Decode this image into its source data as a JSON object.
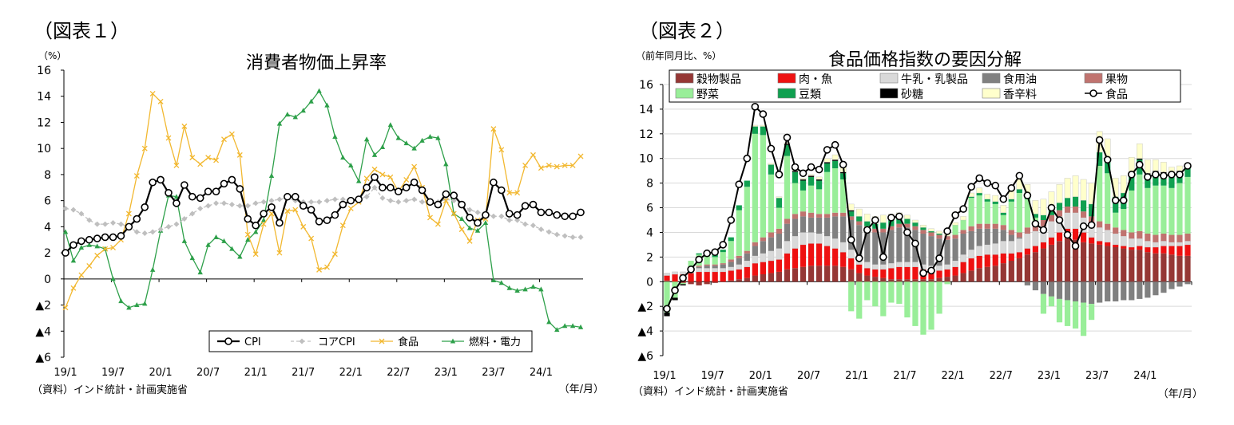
{
  "chart_data": [
    {
      "type": "line",
      "figure_label": "（図表１）",
      "title": "消費者物価上昇率",
      "ylabel": "（%）",
      "unit_label": "（年/月）",
      "source": "（資料）インド統計・計画実施省",
      "ylim": [
        -6,
        16
      ],
      "yticks": [
        16,
        14,
        12,
        10,
        8,
        6,
        4,
        2,
        0,
        "▲2",
        "▲4",
        "▲6"
      ],
      "xtick_labels": [
        "19/1",
        "19/7",
        "20/1",
        "20/7",
        "21/1",
        "21/7",
        "22/1",
        "22/7",
        "23/1",
        "23/7",
        "24/1"
      ],
      "legend": [
        "CPI",
        "コアCPI",
        "食品",
        "燃料・電力"
      ],
      "legend_position": "bottom-right",
      "series": [
        {
          "name": "CPI",
          "color": "#000000",
          "marker": "open-circle",
          "values": [
            2.0,
            2.6,
            2.9,
            3.0,
            3.1,
            3.2,
            3.2,
            3.3,
            4.0,
            4.6,
            5.5,
            7.4,
            7.6,
            6.6,
            5.8,
            7.2,
            6.3,
            6.2,
            6.7,
            6.7,
            7.3,
            7.6,
            6.9,
            4.6,
            4.1,
            5.0,
            5.5,
            4.3,
            6.3,
            6.3,
            5.6,
            5.3,
            4.4,
            4.5,
            4.9,
            5.7,
            6.0,
            6.1,
            7.0,
            7.8,
            7.0,
            7.0,
            6.7,
            7.0,
            7.4,
            6.8,
            5.9,
            5.7,
            6.5,
            6.4,
            5.7,
            4.7,
            4.3,
            4.9,
            7.4,
            6.8,
            5.0,
            4.9,
            5.6,
            5.7,
            5.1,
            5.1,
            4.9,
            4.8,
            4.8,
            5.1
          ]
        },
        {
          "name": "コアCPI",
          "color": "#bfbfbf",
          "marker": "diamond",
          "values": [
            5.4,
            5.3,
            5.0,
            4.5,
            4.2,
            4.2,
            4.3,
            4.2,
            4.0,
            3.6,
            3.5,
            3.6,
            3.8,
            4.0,
            4.2,
            4.6,
            5.0,
            5.4,
            5.6,
            5.8,
            5.8,
            5.7,
            5.6,
            5.6,
            5.8,
            5.9,
            6.0,
            6.1,
            6.2,
            6.0,
            5.9,
            5.9,
            5.9,
            6.0,
            6.1,
            6.1,
            6.0,
            6.1,
            6.3,
            7.0,
            6.2,
            6.0,
            5.9,
            6.0,
            6.1,
            5.9,
            5.9,
            5.9,
            6.1,
            6.0,
            5.7,
            5.3,
            5.1,
            5.0,
            4.8,
            4.8,
            4.5,
            4.5,
            4.2,
            4.1,
            3.8,
            3.6,
            3.4,
            3.3,
            3.2,
            3.2
          ]
        },
        {
          "name": "食品",
          "color": "#f2b830",
          "marker": "x",
          "values": [
            -2.2,
            -0.7,
            0.3,
            1.0,
            1.8,
            2.3,
            2.4,
            3.0,
            5.0,
            7.9,
            10.0,
            14.2,
            13.6,
            10.8,
            8.7,
            11.7,
            9.3,
            8.8,
            9.3,
            9.1,
            10.7,
            11.1,
            9.5,
            3.4,
            1.9,
            4.2,
            5.0,
            2.0,
            5.2,
            5.3,
            4.0,
            3.1,
            0.7,
            0.9,
            1.9,
            4.1,
            5.4,
            5.9,
            7.7,
            8.4,
            8.0,
            7.8,
            6.7,
            7.6,
            8.6,
            7.0,
            4.7,
            4.2,
            6.0,
            5.0,
            3.8,
            2.9,
            4.5,
            4.6,
            11.5,
            9.9,
            6.6,
            6.6,
            8.7,
            9.5,
            8.5,
            8.7,
            8.6,
            8.7,
            8.7,
            9.4
          ]
        },
        {
          "name": "燃料・電力",
          "color": "#2ea04a",
          "marker": "triangle",
          "values": [
            3.6,
            1.4,
            2.4,
            2.6,
            2.5,
            2.3,
            0.0,
            -1.7,
            -2.2,
            -2.0,
            -1.9,
            0.7,
            3.7,
            6.4,
            6.3,
            2.9,
            1.6,
            0.5,
            2.6,
            3.2,
            2.9,
            2.3,
            1.7,
            3.0,
            3.6,
            4.5,
            7.9,
            11.9,
            12.6,
            12.4,
            12.9,
            13.6,
            14.4,
            13.3,
            10.9,
            9.3,
            8.7,
            7.5,
            10.7,
            9.5,
            10.1,
            11.8,
            10.8,
            10.4,
            10.0,
            10.6,
            10.9,
            10.8,
            8.8,
            5.0,
            4.6,
            3.9,
            3.7,
            4.3,
            -0.1,
            -0.3,
            -0.7,
            -0.9,
            -0.8,
            -0.6,
            -0.8,
            -3.3,
            -3.9,
            -3.6,
            -3.6,
            -3.7
          ]
        }
      ]
    },
    {
      "type": "bar",
      "stacked": true,
      "figure_label": "（図表２）",
      "title": "食品価格指数の要因分解",
      "ylabel": "（前年同月比、%）",
      "unit_label": "（年/月）",
      "source": "（資料）インド統計・計画実施省",
      "ylim": [
        -6,
        16
      ],
      "yticks": [
        16,
        14,
        12,
        10,
        8,
        6,
        4,
        2,
        0,
        "▲2",
        "▲4",
        "▲6"
      ],
      "xtick_labels": [
        "19/1",
        "19/7",
        "20/1",
        "20/7",
        "21/1",
        "21/7",
        "22/1",
        "22/7",
        "23/1",
        "23/7",
        "24/1"
      ],
      "legend": [
        "穀物製品",
        "肉・魚",
        "牛乳・乳製品",
        "食用油",
        "果物",
        "野菜",
        "豆類",
        "砂糖",
        "香辛料",
        "食品"
      ],
      "legend_position": "top",
      "series": [
        {
          "name": "穀物製品",
          "color": "#953735",
          "values": [
            0.1,
            0.0,
            -0.1,
            -0.2,
            -0.3,
            -0.2,
            -0.1,
            0.0,
            0.1,
            0.2,
            0.3,
            0.5,
            0.6,
            0.7,
            0.8,
            1.0,
            1.1,
            1.2,
            1.3,
            1.3,
            1.3,
            1.3,
            1.2,
            1.0,
            0.7,
            0.5,
            0.4,
            0.3,
            0.2,
            0.2,
            0.2,
            0.2,
            0.2,
            0.2,
            0.3,
            0.4,
            0.5,
            0.7,
            0.9,
            1.1,
            1.2,
            1.3,
            1.5,
            1.7,
            1.9,
            2.2,
            2.4,
            2.7,
            3.0,
            3.3,
            3.5,
            3.4,
            3.2,
            3.1,
            3.0,
            2.9,
            2.8,
            2.7,
            2.6,
            2.6,
            2.4,
            2.3,
            2.3,
            2.2,
            2.1,
            2.1
          ]
        },
        {
          "name": "肉・魚",
          "color": "#ee1111",
          "values": [
            0.4,
            0.6,
            0.6,
            0.7,
            0.8,
            0.8,
            0.8,
            0.8,
            0.8,
            0.8,
            0.9,
            1.0,
            1.0,
            1.0,
            1.0,
            1.3,
            1.6,
            1.8,
            1.8,
            1.8,
            1.6,
            1.4,
            1.2,
            0.9,
            0.7,
            0.6,
            0.6,
            0.7,
            0.9,
            1.0,
            1.0,
            1.0,
            0.8,
            0.7,
            0.6,
            0.6,
            0.7,
            0.9,
            1.0,
            1.0,
            1.0,
            0.9,
            0.8,
            0.6,
            0.5,
            0.5,
            0.5,
            0.5,
            0.6,
            0.7,
            0.8,
            0.9,
            0.8,
            0.5,
            0.3,
            0.3,
            0.2,
            0.2,
            0.2,
            0.3,
            0.4,
            0.5,
            0.6,
            0.7,
            0.8,
            0.9
          ]
        },
        {
          "name": "牛乳・乳製品",
          "color": "#d9d9d9",
          "values": [
            0.2,
            0.2,
            0.2,
            0.2,
            0.3,
            0.3,
            0.3,
            0.3,
            0.3,
            0.4,
            0.5,
            0.6,
            0.7,
            0.8,
            0.9,
            1.0,
            1.0,
            1.0,
            0.9,
            0.8,
            0.8,
            0.8,
            0.8,
            0.7,
            0.6,
            0.5,
            0.4,
            0.4,
            0.4,
            0.4,
            0.4,
            0.4,
            0.4,
            0.4,
            0.4,
            0.4,
            0.5,
            0.6,
            0.7,
            0.8,
            0.8,
            0.9,
            1.0,
            1.0,
            1.1,
            1.2,
            1.2,
            1.3,
            1.3,
            1.3,
            1.3,
            1.3,
            1.2,
            1.2,
            1.1,
            1.0,
            0.9,
            0.8,
            0.7,
            0.6,
            0.5,
            0.4,
            0.4,
            0.3,
            0.3,
            0.3
          ]
        },
        {
          "name": "食用油",
          "color": "#808080",
          "values": [
            0.0,
            0.0,
            0.0,
            0.1,
            0.1,
            0.2,
            0.2,
            0.3,
            0.4,
            0.5,
            0.6,
            0.8,
            1.0,
            1.1,
            1.2,
            1.4,
            1.4,
            1.3,
            1.2,
            1.3,
            1.5,
            1.8,
            2.1,
            2.4,
            2.6,
            2.6,
            2.6,
            2.6,
            2.7,
            2.8,
            2.8,
            2.6,
            2.5,
            2.4,
            2.2,
            2.0,
            1.8,
            1.7,
            1.5,
            1.4,
            1.3,
            1.2,
            0.9,
            0.5,
            0.1,
            -0.3,
            -0.7,
            -1.0,
            -1.2,
            -1.4,
            -1.5,
            -1.6,
            -1.7,
            -1.8,
            -1.7,
            -1.6,
            -1.6,
            -1.5,
            -1.5,
            -1.4,
            -1.3,
            -1.1,
            -0.9,
            -0.6,
            -0.4,
            -0.2
          ]
        },
        {
          "name": "果物",
          "color": "#c0736f",
          "values": [
            0.0,
            0.0,
            0.0,
            0.1,
            0.1,
            0.1,
            0.1,
            0.1,
            0.2,
            0.2,
            0.2,
            0.3,
            0.3,
            0.4,
            0.4,
            0.4,
            0.4,
            0.4,
            0.4,
            0.3,
            0.3,
            0.3,
            0.3,
            0.3,
            0.3,
            0.3,
            0.3,
            0.3,
            0.3,
            0.3,
            0.3,
            0.3,
            0.3,
            0.3,
            0.3,
            0.3,
            0.3,
            0.3,
            0.4,
            0.4,
            0.4,
            0.4,
            0.4,
            0.4,
            0.4,
            0.5,
            0.5,
            0.5,
            0.5,
            0.5,
            0.5,
            0.5,
            0.5,
            0.5,
            0.5,
            0.5,
            0.5,
            0.5,
            0.5,
            0.6,
            0.6,
            0.6,
            0.6,
            0.6,
            0.6,
            0.6
          ]
        },
        {
          "name": "野菜",
          "color": "#99ee99",
          "values": [
            -2.5,
            -1.3,
            -0.1,
            0.6,
            0.9,
            0.9,
            0.6,
            0.9,
            1.5,
            3.7,
            5.2,
            8.8,
            8.3,
            4.7,
            1.7,
            5.1,
            2.5,
            1.7,
            2.2,
            2.0,
            3.4,
            3.6,
            2.7,
            -2.4,
            -3.0,
            -1.5,
            -2.0,
            -2.8,
            -1.7,
            -1.8,
            -2.9,
            -3.6,
            -4.3,
            -3.9,
            -2.6,
            -0.2,
            0.8,
            0.8,
            2.3,
            2.3,
            1.8,
            1.6,
            0.8,
            2.3,
            3.2,
            2.3,
            0.6,
            -1.6,
            -0.8,
            -1.9,
            -2.1,
            -2.2,
            -2.7,
            -1.3,
            4.5,
            4.1,
            1.2,
            1.7,
            3.4,
            4.6,
            3.7,
            4.0,
            3.9,
            3.8,
            4.2,
            4.6
          ]
        },
        {
          "name": "豆類",
          "color": "#10a050",
          "values": [
            0.0,
            0.0,
            0.0,
            0.0,
            0.1,
            0.1,
            0.2,
            0.2,
            0.3,
            0.4,
            0.5,
            0.6,
            0.7,
            0.8,
            0.8,
            0.9,
            0.9,
            0.8,
            0.7,
            0.7,
            0.7,
            0.6,
            0.5,
            0.4,
            0.4,
            0.4,
            0.4,
            0.5,
            0.5,
            0.5,
            0.4,
            0.3,
            0.2,
            0.1,
            0.1,
            0.0,
            0.0,
            0.0,
            0.1,
            0.2,
            0.2,
            0.2,
            0.2,
            0.2,
            0.3,
            0.3,
            0.3,
            0.4,
            0.5,
            0.6,
            0.7,
            0.8,
            0.9,
            1.0,
            1.1,
            1.2,
            1.3,
            1.3,
            1.3,
            1.2,
            1.1,
            1.1,
            1.0,
            1.0,
            0.9,
            0.8
          ]
        },
        {
          "name": "砂糖",
          "color": "#000000",
          "values": [
            -0.3,
            -0.2,
            -0.1,
            0.0,
            0.0,
            0.0,
            0.0,
            0.0,
            0.0,
            0.0,
            0.0,
            0.0,
            0.0,
            0.0,
            0.0,
            0.1,
            0.1,
            0.1,
            0.1,
            0.1,
            0.1,
            0.1,
            0.1,
            0.1,
            0.0,
            0.0,
            0.0,
            0.0,
            0.0,
            0.0,
            0.0,
            0.0,
            0.0,
            0.0,
            0.0,
            0.0,
            0.0,
            0.0,
            0.0,
            0.0,
            0.0,
            0.0,
            0.0,
            0.0,
            0.0,
            0.0,
            0.0,
            0.0,
            0.0,
            0.0,
            0.0,
            0.0,
            0.0,
            0.0,
            0.0,
            0.0,
            0.0,
            0.0,
            0.1,
            0.1,
            0.1,
            0.1,
            0.1,
            0.1,
            0.1,
            0.1
          ]
        },
        {
          "name": "香辛料",
          "color": "#ffffcc",
          "values": [
            0.0,
            0.0,
            0.0,
            0.0,
            0.0,
            0.0,
            0.0,
            0.0,
            0.0,
            0.0,
            0.0,
            0.1,
            0.1,
            0.1,
            0.1,
            0.1,
            0.1,
            0.1,
            0.1,
            0.2,
            0.3,
            0.4,
            0.4,
            0.5,
            0.6,
            0.6,
            0.6,
            0.6,
            0.5,
            0.4,
            0.3,
            0.2,
            0.2,
            0.2,
            0.2,
            0.2,
            0.2,
            0.3,
            0.3,
            0.4,
            0.4,
            0.5,
            0.6,
            0.7,
            0.8,
            0.9,
            1.1,
            1.3,
            1.4,
            1.5,
            1.6,
            1.7,
            1.7,
            1.7,
            1.7,
            1.6,
            1.5,
            1.4,
            1.3,
            1.2,
            1.1,
            0.9,
            0.8,
            0.6,
            0.4,
            0.2
          ]
        },
        {
          "name": "食品",
          "color": "#000000",
          "type": "line",
          "marker": "open-circle",
          "values": [
            -2.2,
            -0.7,
            0.3,
            1.0,
            1.8,
            2.3,
            2.4,
            3.0,
            5.0,
            7.9,
            10.0,
            14.2,
            13.6,
            10.8,
            8.7,
            11.7,
            9.3,
            8.8,
            9.3,
            9.1,
            10.7,
            11.1,
            9.5,
            3.4,
            1.9,
            4.2,
            5.0,
            2.0,
            5.2,
            5.3,
            4.0,
            3.1,
            0.7,
            0.9,
            1.9,
            4.1,
            5.4,
            5.9,
            7.7,
            8.4,
            8.0,
            7.8,
            6.7,
            7.6,
            8.6,
            7.0,
            4.7,
            4.2,
            6.0,
            5.0,
            3.8,
            2.9,
            4.5,
            4.6,
            11.5,
            9.9,
            6.6,
            6.6,
            8.7,
            9.5,
            8.5,
            8.7,
            8.6,
            8.7,
            8.7,
            9.4
          ]
        }
      ]
    }
  ]
}
